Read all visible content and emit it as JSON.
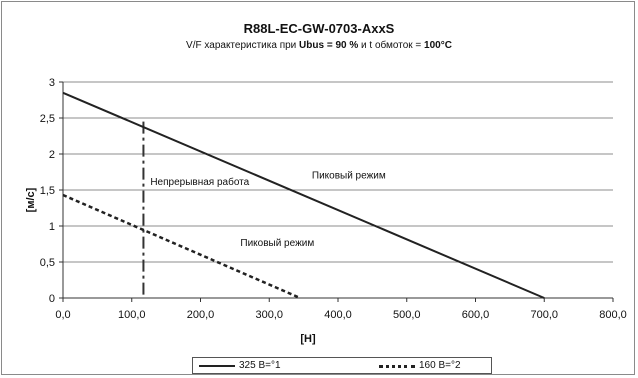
{
  "chart_data": {
    "type": "line",
    "title": "R88L-EC-GW-0703-AxxS",
    "subtitle": {
      "prefix": "V/F характеристика при ",
      "ubus": "Ubus = 90 %",
      "middle": " и t обмоток = ",
      "temp": "100°C"
    },
    "xlabel": "[Н]",
    "ylabel": "[м/с]",
    "xlim": [
      0,
      800
    ],
    "ylim": [
      0,
      3
    ],
    "xticks": [
      "0,0",
      "100,0",
      "200,0",
      "300,0",
      "400,0",
      "500,0",
      "600,0",
      "700,0",
      "800,0"
    ],
    "yticks": [
      "0",
      "0,5",
      "1",
      "1,5",
      "2",
      "2,5",
      "3"
    ],
    "grid": "horizontal",
    "legend_position": "bottom",
    "series": [
      {
        "name": "325 В=°1",
        "style": "solid",
        "color": "#222222",
        "x": [
          0,
          700
        ],
        "y": [
          2.85,
          0
        ]
      },
      {
        "name": "160 В=°2",
        "style": "dotted",
        "color": "#222222",
        "x": [
          0,
          345
        ],
        "y": [
          1.43,
          0
        ]
      }
    ],
    "vline": {
      "x": 117,
      "y_top": 2.45,
      "style": "dashdot",
      "color": "#333333"
    },
    "annotations": [
      {
        "text": "Непрерывная работа",
        "x": 127,
        "y": 1.57
      },
      {
        "text": "Пиковый режим",
        "x": 362,
        "y": 1.66
      },
      {
        "text": "Пиковый режим",
        "x": 258,
        "y": 0.72
      }
    ]
  }
}
